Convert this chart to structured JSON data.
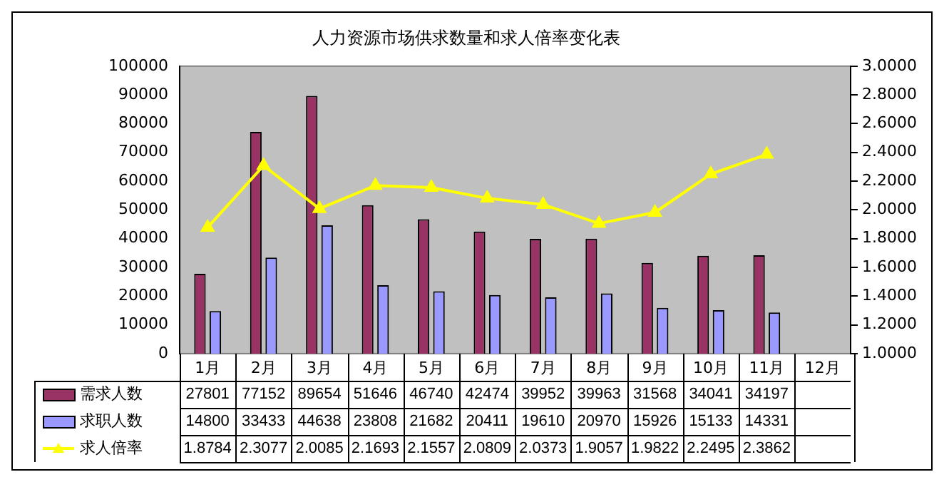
{
  "chart_data": {
    "type": "bar",
    "title": "人力资源市场供求数量和求人倍率变化表",
    "categories": [
      "1月",
      "2月",
      "3月",
      "4月",
      "5月",
      "6月",
      "7月",
      "8月",
      "9月",
      "10月",
      "11月",
      "12月"
    ],
    "series": [
      {
        "name": "需求人数",
        "color": "#993366",
        "values": [
          27801,
          77152,
          89654,
          51646,
          46740,
          42474,
          39952,
          39963,
          31568,
          34041,
          34197,
          null
        ]
      },
      {
        "name": "求职人数",
        "color": "#9999ff",
        "values": [
          14800,
          33433,
          44638,
          23808,
          21682,
          20411,
          19610,
          20970,
          15926,
          15133,
          14331,
          null
        ]
      },
      {
        "name": "求人倍率",
        "type": "line",
        "axis": "y2",
        "color": "#ffff00",
        "marker": "triangle",
        "values": [
          1.8784,
          2.3077,
          2.0085,
          2.1693,
          2.1557,
          2.0809,
          2.0373,
          1.9057,
          1.9822,
          2.2495,
          2.3862,
          null
        ]
      }
    ],
    "ylim": [
      0,
      100000
    ],
    "yticks": [
      0,
      10000,
      20000,
      30000,
      40000,
      50000,
      60000,
      70000,
      80000,
      90000,
      100000
    ],
    "y2lim": [
      1,
      3
    ],
    "y2ticks": [
      {
        "value": 1,
        "label": "1.0000"
      },
      {
        "value": 1.2,
        "label": "1.2000"
      },
      {
        "value": 1.4,
        "label": "1.4000"
      },
      {
        "value": 1.6,
        "label": "1.6000"
      },
      {
        "value": 1.8,
        "label": "1.8000"
      },
      {
        "value": 2,
        "label": "2.0000"
      },
      {
        "value": 2.2,
        "label": "2.2000"
      },
      {
        "value": 2.4,
        "label": "2.4000"
      },
      {
        "value": 2.6,
        "label": "2.6000"
      },
      {
        "value": 2.8,
        "label": "2.8000"
      },
      {
        "value": 3,
        "label": "3.0000"
      }
    ],
    "grid": false,
    "legend": "bottom",
    "data_labels": true
  }
}
